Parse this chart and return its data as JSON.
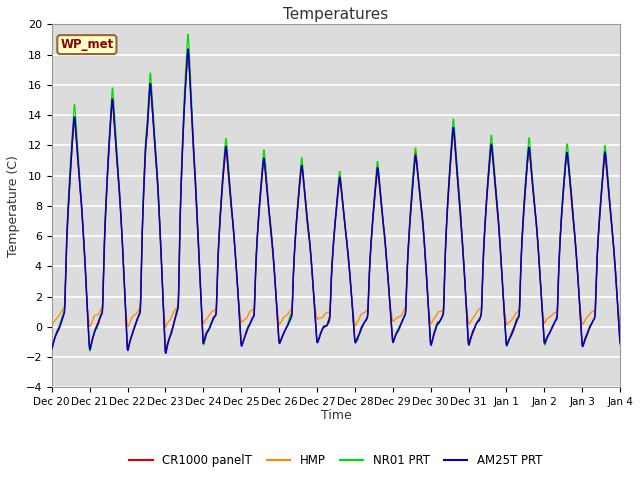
{
  "title": "Temperatures",
  "ylabel": "Temperature (C)",
  "xlabel": "Time",
  "ylim": [
    -4,
    20
  ],
  "bg_color": "#dcdcdc",
  "fig_color": "#ffffff",
  "annotation_text": "WP_met",
  "annotation_color": "#8b0000",
  "annotation_bg": "#ffffcc",
  "annotation_border": "#996633",
  "series_colors": {
    "CR1000 panelT": "#dd0000",
    "HMP": "#ff8800",
    "NR01 PRT": "#00dd00",
    "AM25T PRT": "#0000cc"
  },
  "x_tick_labels": [
    "Dec 20",
    "Dec 21",
    "Dec 22",
    "Dec 23",
    "Dec 24",
    "Dec 25",
    "Dec 26",
    "Dec 27",
    "Dec 28",
    "Dec 29",
    "Dec 30",
    "Dec 31",
    "Jan 1",
    "Jan 2",
    "Jan 3",
    "Jan 4"
  ],
  "n_points": 2160,
  "days": 15,
  "seed": 7
}
